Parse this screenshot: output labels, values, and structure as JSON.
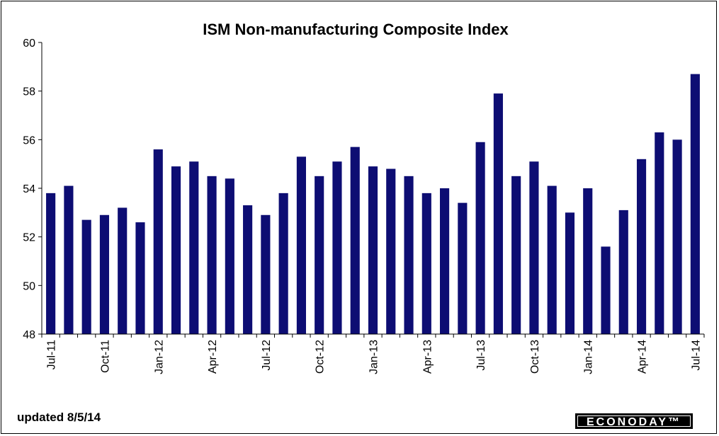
{
  "footer": {
    "updated": "updated 8/5/14",
    "brand": "ECONODAY™"
  },
  "colors": {
    "bar": "#0d0d73",
    "axis": "#000000"
  },
  "chart_data": {
    "type": "bar",
    "title": "ISM Non-manufacturing Composite Index",
    "xlabel": "",
    "ylabel": "",
    "ylim": [
      48,
      60
    ],
    "yticks": [
      48,
      50,
      52,
      54,
      56,
      58,
      60
    ],
    "grid": false,
    "legend": "none",
    "categories": [
      "Jul-11",
      "Aug-11",
      "Sep-11",
      "Oct-11",
      "Nov-11",
      "Dec-11",
      "Jan-12",
      "Feb-12",
      "Mar-12",
      "Apr-12",
      "May-12",
      "Jun-12",
      "Jul-12",
      "Aug-12",
      "Sep-12",
      "Oct-12",
      "Nov-12",
      "Dec-12",
      "Jan-13",
      "Feb-13",
      "Mar-13",
      "Apr-13",
      "May-13",
      "Jun-13",
      "Jul-13",
      "Aug-13",
      "Sep-13",
      "Oct-13",
      "Nov-13",
      "Dec-13",
      "Jan-14",
      "Feb-14",
      "Mar-14",
      "Apr-14",
      "May-14",
      "Jun-14",
      "Jul-14"
    ],
    "tick_labels": [
      {
        "index": 0,
        "label": "Jul-11"
      },
      {
        "index": 3,
        "label": "Oct-11"
      },
      {
        "index": 6,
        "label": "Jan-12"
      },
      {
        "index": 9,
        "label": "Apr-12"
      },
      {
        "index": 12,
        "label": "Jul-12"
      },
      {
        "index": 15,
        "label": "Oct-12"
      },
      {
        "index": 18,
        "label": "Jan-13"
      },
      {
        "index": 21,
        "label": "Apr-13"
      },
      {
        "index": 24,
        "label": "Jul-13"
      },
      {
        "index": 27,
        "label": "Oct-13"
      },
      {
        "index": 30,
        "label": "Jan-14"
      },
      {
        "index": 33,
        "label": "Apr-14"
      },
      {
        "index": 36,
        "label": "Jul-14"
      }
    ],
    "values": [
      53.8,
      54.1,
      52.7,
      52.9,
      53.2,
      52.6,
      55.6,
      54.9,
      55.1,
      54.5,
      54.4,
      53.3,
      52.9,
      53.8,
      55.3,
      54.5,
      55.1,
      55.7,
      54.9,
      54.8,
      54.5,
      53.8,
      54.0,
      53.4,
      55.9,
      57.9,
      54.5,
      55.1,
      54.1,
      53.0,
      54.0,
      51.6,
      53.1,
      55.2,
      56.3,
      56.0,
      58.7
    ]
  }
}
